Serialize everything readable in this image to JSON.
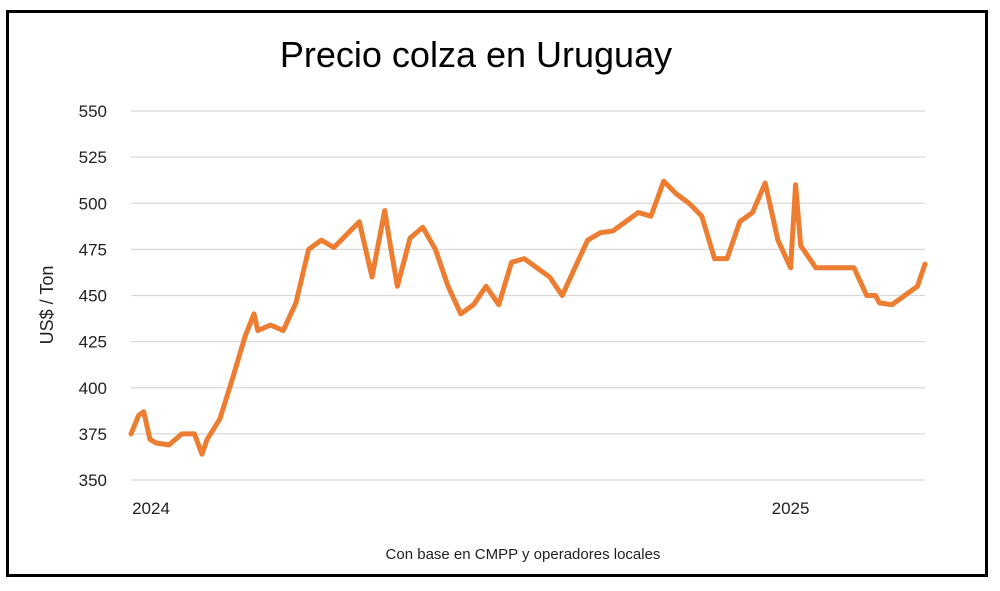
{
  "chart_data": {
    "type": "line",
    "title": "Precio colza en Uruguay",
    "ylabel": "US$ / Ton",
    "xlabel": "Con base en CMPP y operadores locales",
    "ylim": [
      350,
      550
    ],
    "yticks": [
      350,
      375,
      400,
      425,
      450,
      475,
      500,
      525,
      550
    ],
    "x_labels": [
      {
        "label": "2024",
        "week": 0
      },
      {
        "label": "2025",
        "week": 52
      }
    ],
    "grid": "horizontal",
    "color": "#ED7D31",
    "series": [
      {
        "name": "",
        "x": [
          0,
          0.6,
          1,
          1.5,
          2,
          3,
          4,
          4.5,
          5,
          5.6,
          6,
          7,
          8,
          9,
          9.7,
          10,
          11,
          12,
          13,
          14,
          15,
          16,
          17,
          18,
          19,
          20,
          20.5,
          21,
          22,
          23,
          24,
          25,
          26,
          27,
          28,
          29,
          30,
          31,
          32,
          33,
          34,
          35,
          36,
          37,
          38,
          39,
          40,
          41,
          42,
          43,
          44,
          45,
          46,
          47,
          48,
          49,
          50,
          51,
          52,
          52.4,
          52.8,
          54,
          55,
          56,
          57,
          58,
          58.7,
          59,
          60,
          61,
          62,
          62.6
        ],
        "values": [
          375,
          385,
          387,
          372,
          370,
          369,
          375,
          375,
          375,
          364,
          372,
          383,
          405,
          428,
          440,
          431,
          434,
          431,
          446,
          475,
          480,
          476,
          483,
          490,
          460,
          496,
          475,
          455,
          481,
          487,
          475,
          455,
          440,
          445,
          455,
          445,
          468,
          470,
          465,
          460,
          450,
          465,
          480,
          484,
          485,
          490,
          495,
          493,
          512,
          505,
          500,
          493,
          470,
          470,
          490,
          495,
          511,
          480,
          465,
          510,
          477,
          465,
          465,
          465,
          465,
          450,
          450,
          446,
          445,
          450,
          455,
          467
        ]
      }
    ]
  },
  "source_note": "Con base en CMPP y operadores locales"
}
